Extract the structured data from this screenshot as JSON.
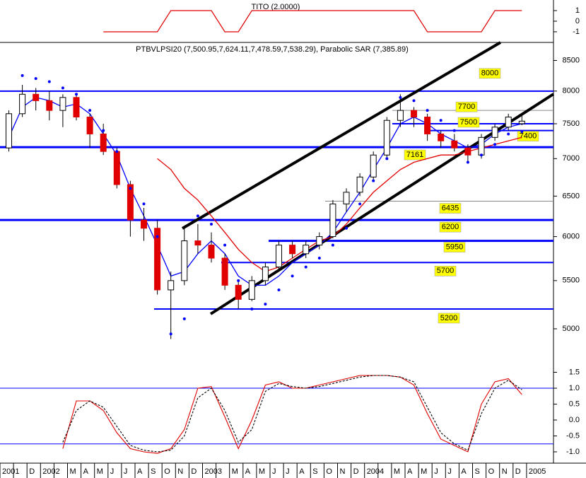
{
  "chart_data": [
    {
      "type": "line",
      "title": "TITO (2.0000)",
      "color": "#e00000",
      "ylim": [
        -1.87,
        2
      ],
      "yticks": [
        1,
        0,
        -1
      ],
      "values": [
        null,
        null,
        null,
        null,
        null,
        null,
        null,
        -1,
        -1,
        -1,
        -1,
        -1,
        1,
        1,
        1,
        1,
        -1,
        -1,
        1,
        1,
        1,
        1,
        1,
        1,
        1,
        1,
        1,
        1,
        1,
        1,
        1,
        -1,
        -1,
        -1,
        -1,
        -1,
        1,
        1,
        1,
        null
      ]
    },
    {
      "type": "candlestick",
      "title": "PTBVLPSI20 (7,500.95,7,624.11,7,478.59,7,538.29), Parabolic SAR (7,385.89)",
      "log": true,
      "ylim": [
        4643,
        8808
      ],
      "yticks": [
        5000,
        5500,
        6000,
        6500,
        7000,
        7500,
        8000,
        8500
      ],
      "up_color": "#ffffff",
      "down_color": "#e00000",
      "open": [
        7150,
        7650,
        7950,
        7850,
        7700,
        7900,
        7600,
        7350,
        7100,
        6650,
        6200,
        6100,
        5400,
        5500,
        5950,
        5900,
        5750,
        5450,
        5300,
        5500,
        5650,
        5900,
        5800,
        5900,
        6000,
        6400,
        6550,
        6750,
        7050,
        7550,
        7700,
        7600,
        7350,
        7250,
        7150,
        7050,
        7300,
        7450,
        7500.95,
        null
      ],
      "high": [
        7700,
        8100,
        8050,
        8000,
        7950,
        7950,
        7650,
        7500,
        7150,
        6700,
        6350,
        6200,
        5600,
        6100,
        6150,
        6050,
        5800,
        5500,
        5550,
        5700,
        5950,
        5950,
        5950,
        6050,
        6450,
        6600,
        6800,
        7100,
        7600,
        7950,
        7750,
        7650,
        7400,
        7350,
        7200,
        7350,
        7500,
        7650,
        7624.11,
        null
      ],
      "low": [
        7100,
        7600,
        7700,
        7550,
        7450,
        7550,
        7150,
        7050,
        6600,
        6000,
        5950,
        5350,
        4900,
        5450,
        5800,
        5700,
        5400,
        5200,
        5280,
        5450,
        5600,
        5750,
        5750,
        5850,
        5980,
        6300,
        6500,
        6700,
        7000,
        7450,
        7450,
        7250,
        7150,
        7100,
        6950,
        7000,
        7250,
        7400,
        7478.59,
        null
      ],
      "close": [
        7650,
        7950,
        7850,
        7700,
        7900,
        7600,
        7350,
        7100,
        6650,
        6200,
        6100,
        5400,
        5500,
        5950,
        5900,
        5750,
        5450,
        5300,
        5500,
        5650,
        5900,
        5800,
        5900,
        6000,
        6400,
        6550,
        6750,
        7050,
        7550,
        7700,
        7600,
        7350,
        7250,
        7150,
        7050,
        7300,
        7450,
        7600,
        7538.29,
        null
      ],
      "overlays": [
        {
          "color": "#0000ff",
          "values": [
            7300,
            7750,
            7900,
            7850,
            7750,
            7800,
            7650,
            7350,
            7050,
            6600,
            6250,
            5900,
            5550,
            5600,
            5800,
            5950,
            5800,
            5550,
            5450,
            5450,
            5550,
            5700,
            5800,
            5900,
            6050,
            6300,
            6550,
            6850,
            7150,
            7500,
            7600,
            7500,
            7350,
            7250,
            7150,
            7200,
            7350,
            7450,
            7500,
            null
          ]
        },
        {
          "color": "#e00000",
          "values": [
            null,
            null,
            null,
            null,
            null,
            null,
            null,
            null,
            null,
            null,
            null,
            7000,
            6850,
            6600,
            6450,
            6250,
            6050,
            5850,
            5700,
            5600,
            5650,
            5750,
            5850,
            5950,
            6000,
            6150,
            6350,
            6550,
            6700,
            6850,
            6950,
            7000,
            7050,
            7050,
            7100,
            7150,
            7200,
            7250,
            7300,
            null
          ]
        }
      ],
      "sar": {
        "color": "#0000ff",
        "values": [
          null,
          8250,
          8200,
          8150,
          8050,
          7950,
          7700,
          7400,
          7100,
          6600,
          6400,
          6000,
          4950,
          5100,
          6250,
          6150,
          5900,
          5500,
          5200,
          5250,
          5400,
          5550,
          5650,
          5750,
          5900,
          6100,
          6400,
          6700,
          7000,
          7900,
          7850,
          7700,
          7550,
          7400,
          6950,
          7050,
          7200,
          7350,
          7385.89,
          null
        ]
      },
      "levels": [
        8000,
        7700,
        7500,
        7400,
        7161,
        6435,
        6200,
        5950,
        5700,
        5200
      ]
    },
    {
      "type": "line",
      "ylim": [
        -1.356,
        1.689
      ],
      "yticks": [
        1.5,
        {
          "value": 1,
          "label": "1.0"
        },
        0.5,
        {
          "value": 0,
          "label": "0.0"
        },
        -0.5,
        {
          "value": -1,
          "label": "-1.0"
        }
      ],
      "hlines": [
        1,
        -0.75
      ],
      "categories": [
        "2001",
        null,
        "D",
        "2002",
        null,
        "M",
        "A",
        "M",
        "J",
        "J",
        "A",
        "S",
        "O",
        "N",
        "D",
        "2003",
        null,
        "M",
        "A",
        "M",
        "J",
        "J",
        "A",
        "S",
        "O",
        "N",
        "D",
        "2004",
        null,
        "M",
        "A",
        "M",
        "J",
        "J",
        "A",
        "S",
        "O",
        "N",
        "D",
        "2005"
      ],
      "series": [
        {
          "color": "#e00000",
          "dash": false,
          "values": [
            null,
            null,
            null,
            null,
            -0.9,
            0.6,
            0.6,
            0.3,
            -0.4,
            -0.9,
            -1.0,
            -1.05,
            -0.9,
            -0.3,
            1.0,
            1.05,
            0.1,
            -0.9,
            0.0,
            1.1,
            1.2,
            1.0,
            1.0,
            1.1,
            1.2,
            1.3,
            1.4,
            1.4,
            1.4,
            1.35,
            1.1,
            0.2,
            -0.6,
            -0.8,
            -1.0,
            0.5,
            1.2,
            1.3,
            0.8,
            null
          ]
        },
        {
          "color": "#000000",
          "dash": true,
          "values": [
            null,
            null,
            null,
            null,
            -0.7,
            0.3,
            0.6,
            0.4,
            -0.2,
            -0.8,
            -0.95,
            -1.0,
            -0.95,
            -0.5,
            0.7,
            1.0,
            0.3,
            -0.7,
            -0.3,
            0.9,
            1.15,
            1.05,
            1.0,
            1.05,
            1.15,
            1.25,
            1.35,
            1.4,
            1.4,
            1.35,
            1.2,
            0.4,
            -0.4,
            -0.75,
            -0.95,
            0.2,
            1.0,
            1.25,
            0.95,
            null
          ]
        }
      ]
    }
  ]
}
